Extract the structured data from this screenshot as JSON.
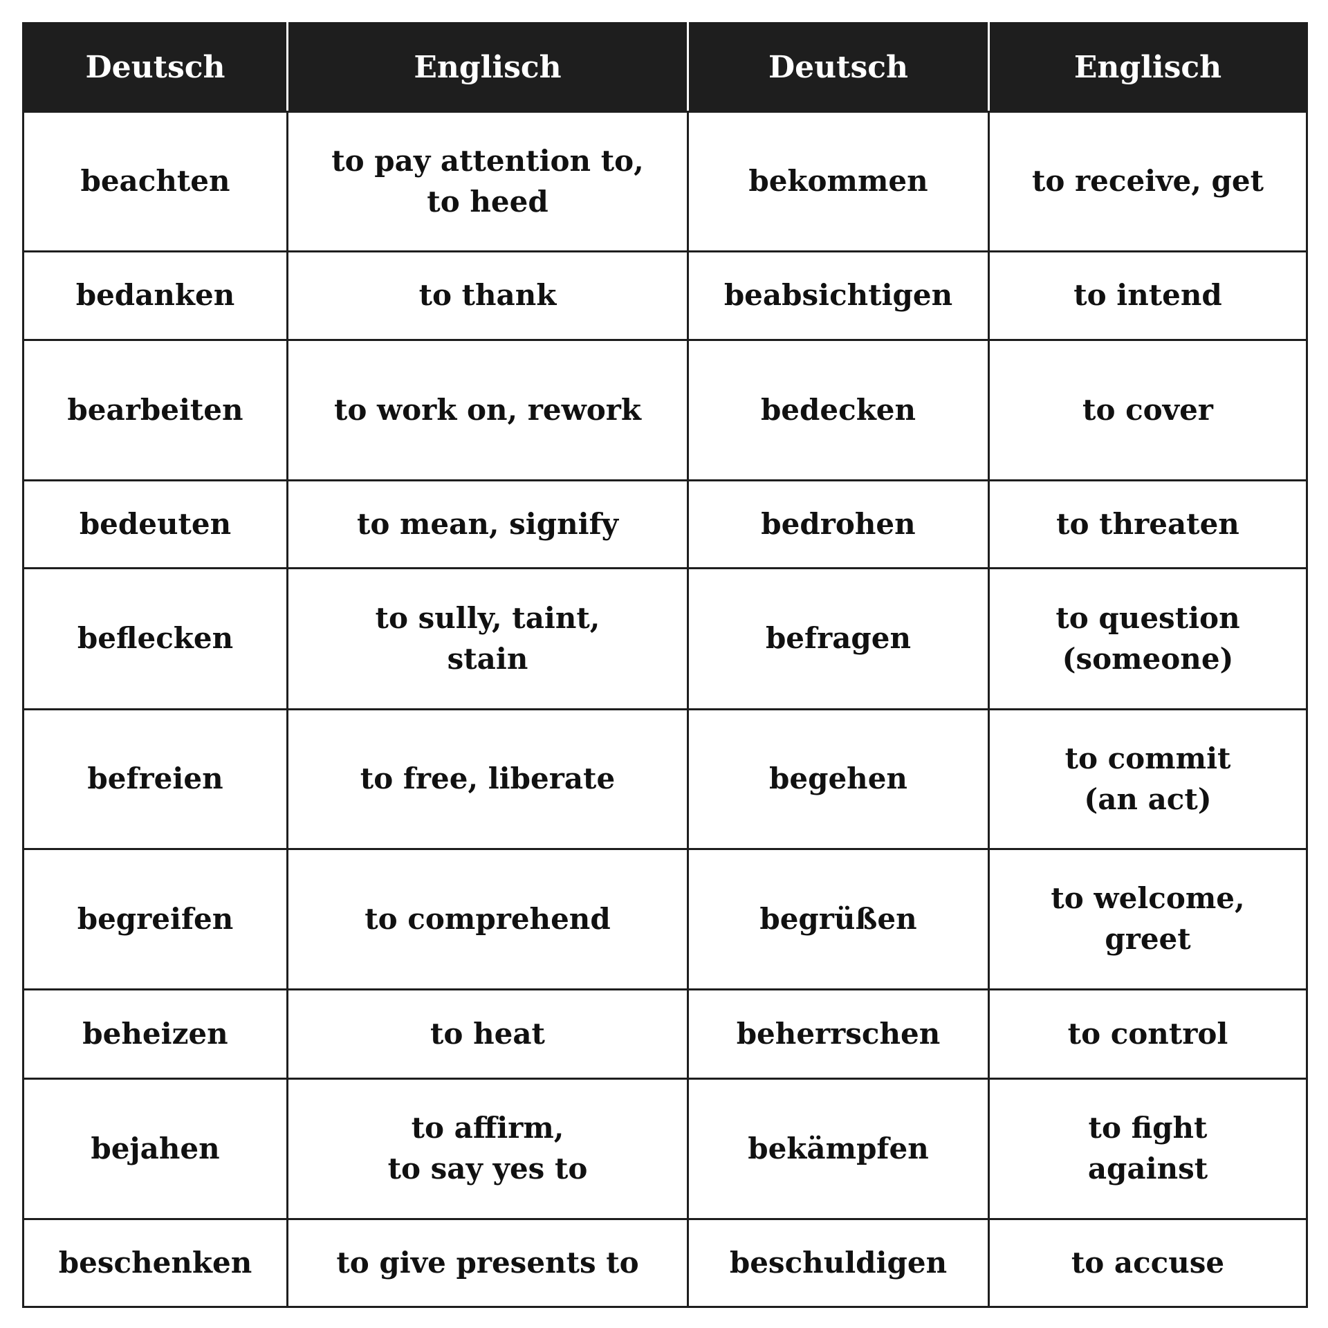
{
  "headers": [
    "Deutsch",
    "Englisch",
    "Deutsch",
    "Englisch"
  ],
  "rows": [
    [
      "beachten",
      "to pay attention to,\nto heed",
      "bekommen",
      "to receive, get"
    ],
    [
      "bedanken",
      "to thank",
      "beabsichtigen",
      "to intend"
    ],
    [
      "bearbeiten",
      "to work on, rework",
      "bedecken",
      "to cover"
    ],
    [
      "bedeuten",
      "to mean, signify",
      "bedrohen",
      "to threaten"
    ],
    [
      "beflecken",
      "to sully, taint,\nstain",
      "befragen",
      "to question\n(someone)"
    ],
    [
      "befreien",
      "to free, liberate",
      "begehen",
      "to commit\n(an act)"
    ],
    [
      "begreifen",
      "to comprehend",
      "begrüßen",
      "to welcome,\ngreet"
    ],
    [
      "beheizen",
      "to heat",
      "beherrschen",
      "to control"
    ],
    [
      "bejahen",
      "to affirm,\nto say yes to",
      "bekämpfen",
      "to fight\nagainst"
    ],
    [
      "beschenken",
      "to give presents to",
      "beschuldigen",
      "to accuse"
    ]
  ]
}
